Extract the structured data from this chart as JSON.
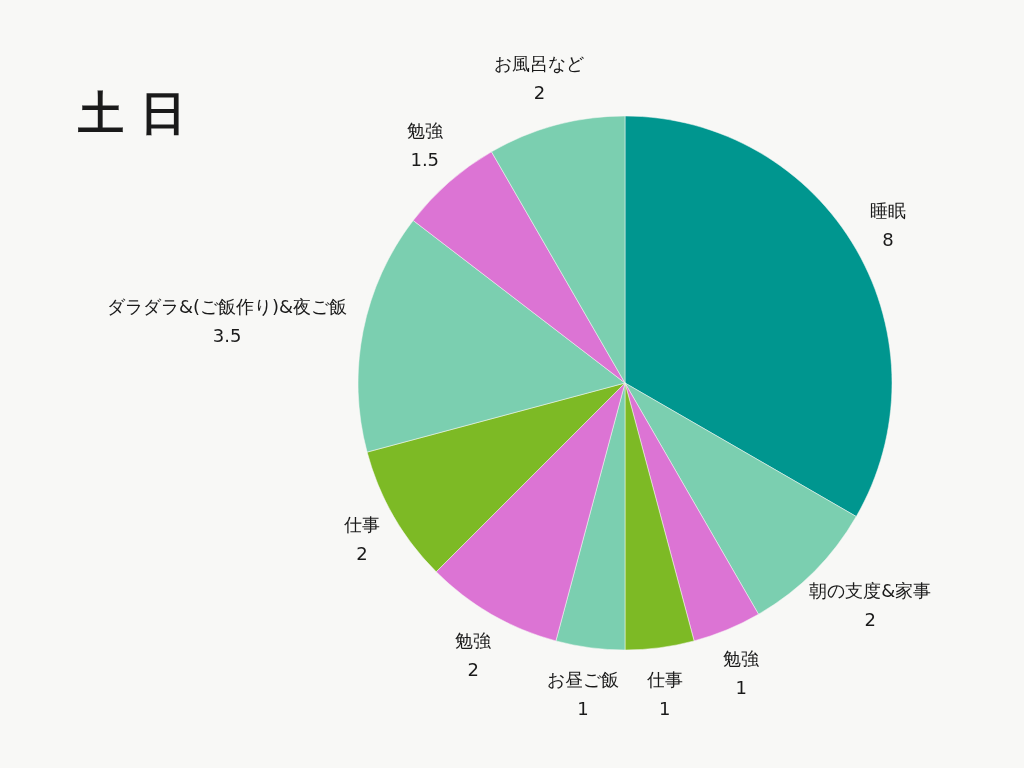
{
  "chart_data": {
    "type": "pie",
    "title": "土 日",
    "categories": [
      "睡眠",
      "朝の支度&家事",
      "勉強",
      "仕事",
      "お昼ご飯",
      "勉強",
      "仕事",
      "ダラダラ&(ご飯作り)&夜ご飯",
      "勉強",
      "お風呂など"
    ],
    "values": [
      8,
      2,
      1,
      1,
      1,
      2,
      2,
      3.5,
      1.5,
      2
    ],
    "colors": [
      "#00968f",
      "#7bcfb0",
      "#dc74d4",
      "#7dba25",
      "#7bcfb0",
      "#dc74d4",
      "#7dba25",
      "#7bcfb0",
      "#dc74d4",
      "#7bcfb0"
    ],
    "data_labels": true
  }
}
